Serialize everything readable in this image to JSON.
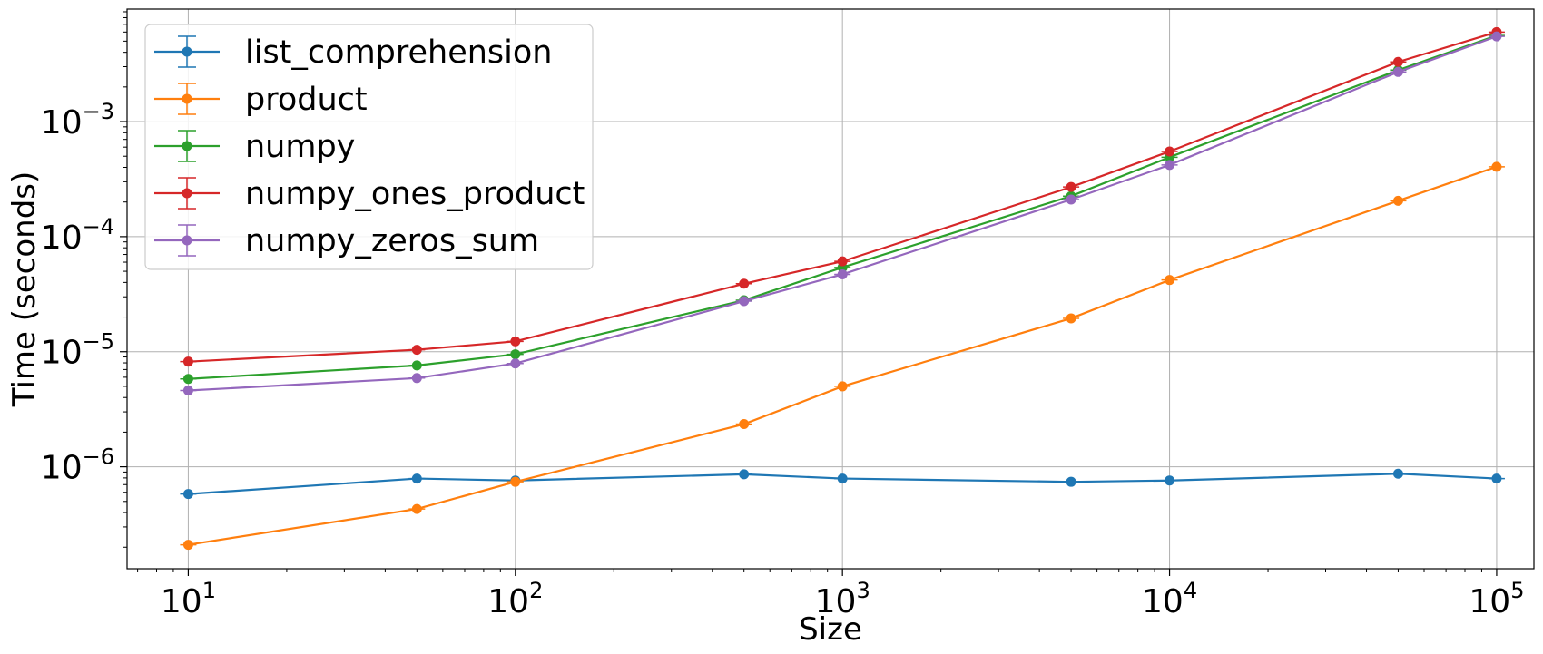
{
  "chart_data": {
    "type": "line",
    "title": "",
    "xlabel": "Size",
    "ylabel": "Time (seconds)",
    "xscale": "log",
    "yscale": "log",
    "xlim": [
      6.5,
      130000
    ],
    "ylim": [
      1.3e-07,
      0.0095
    ],
    "grid": true,
    "legend_position": "top-left",
    "x_ticks": [
      {
        "base": "10",
        "exp": "1",
        "value": 10
      },
      {
        "base": "10",
        "exp": "2",
        "value": 100
      },
      {
        "base": "10",
        "exp": "3",
        "value": 1000
      },
      {
        "base": "10",
        "exp": "4",
        "value": 10000
      },
      {
        "base": "10",
        "exp": "5",
        "value": 100000
      }
    ],
    "y_ticks": [
      {
        "base": "10",
        "exp": "−6",
        "value": 1e-06
      },
      {
        "base": "10",
        "exp": "−5",
        "value": 1e-05
      },
      {
        "base": "10",
        "exp": "−4",
        "value": 0.0001
      },
      {
        "base": "10",
        "exp": "−3",
        "value": 0.001
      }
    ],
    "x": [
      10,
      50,
      100,
      500,
      1000,
      5000,
      10000,
      50000,
      100000
    ],
    "series": [
      {
        "name": "list_comprehension",
        "color": "#1f77b4",
        "values": [
          5.8e-07,
          7.9e-07,
          7.6e-07,
          8.6e-07,
          7.9e-07,
          7.4e-07,
          7.6e-07,
          8.7e-07,
          7.9e-07
        ]
      },
      {
        "name": "product",
        "color": "#ff7f0e",
        "values": [
          2.1e-07,
          4.3e-07,
          7.4e-07,
          2.35e-06,
          5e-06,
          1.95e-05,
          4.2e-05,
          0.000205,
          0.000405
        ]
      },
      {
        "name": "numpy",
        "color": "#2ca02c",
        "values": [
          5.8e-06,
          7.6e-06,
          9.5e-06,
          2.8e-05,
          5.4e-05,
          0.000225,
          0.00049,
          0.0028,
          0.0056
        ]
      },
      {
        "name": "numpy_ones_product",
        "color": "#d62728",
        "values": [
          8.2e-06,
          1.04e-05,
          1.23e-05,
          3.9e-05,
          6.1e-05,
          0.00027,
          0.00055,
          0.0033,
          0.006
        ]
      },
      {
        "name": "numpy_zeros_sum",
        "color": "#9467bd",
        "values": [
          4.6e-06,
          5.9e-06,
          7.9e-06,
          2.75e-05,
          4.7e-05,
          0.00021,
          0.00042,
          0.0027,
          0.0055
        ]
      }
    ]
  }
}
